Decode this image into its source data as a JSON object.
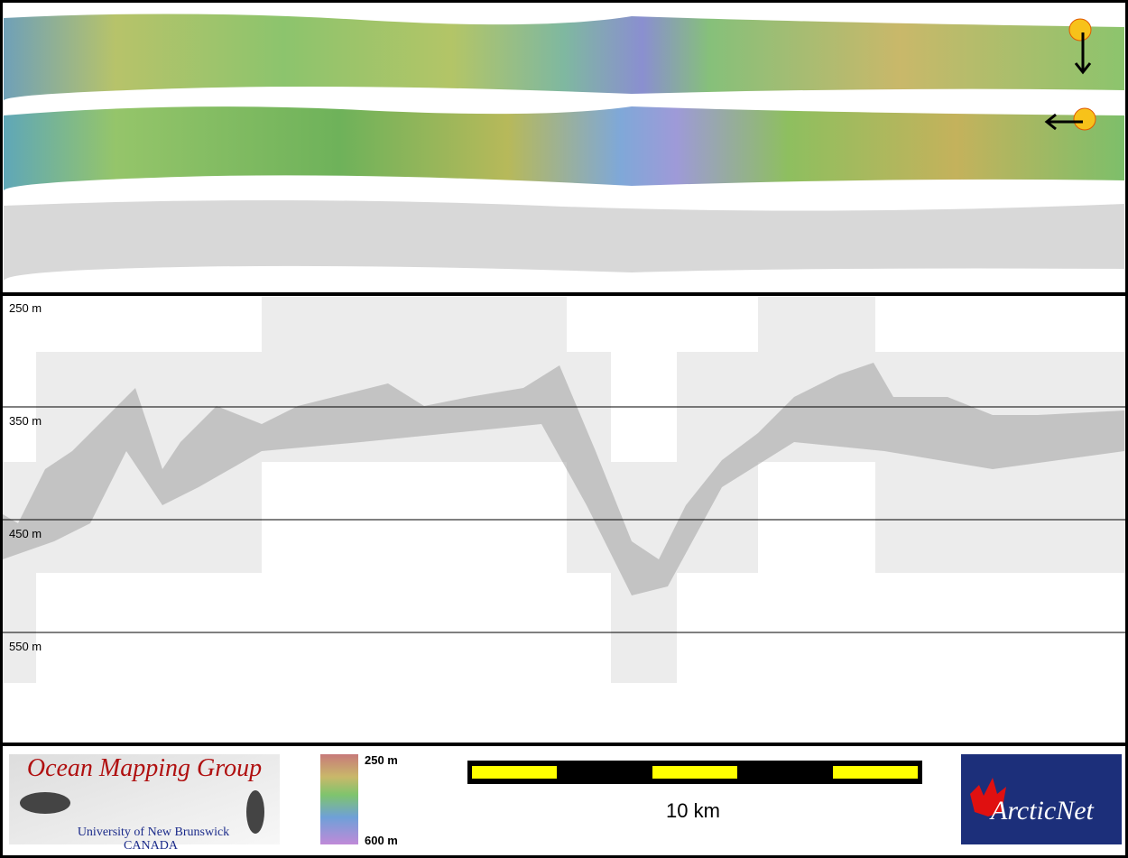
{
  "profile": {
    "depth_labels": [
      "250 m",
      "350 m",
      "450 m",
      "550 m"
    ]
  },
  "colorbar": {
    "top_label": "250 m",
    "bottom_label": "600 m"
  },
  "scale_bar": {
    "label": "10 km"
  },
  "logos": {
    "omg_title": "Ocean Mapping Group",
    "omg_university": "University of New Brunswick",
    "omg_country": "CANADA",
    "arcticnet": "ArcticNet"
  }
}
